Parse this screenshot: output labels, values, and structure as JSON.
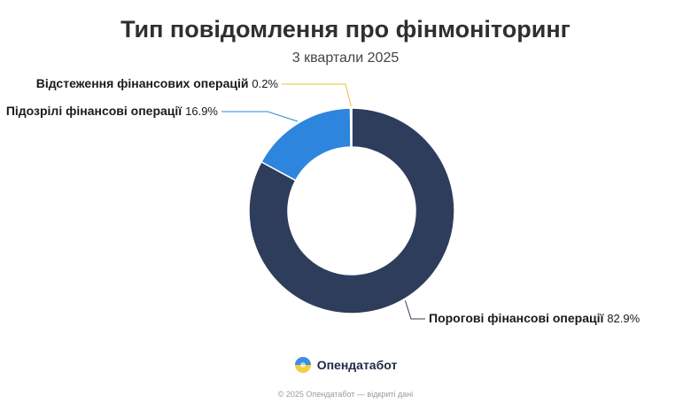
{
  "chart_data": {
    "type": "pie",
    "title": "Тип повідомлення про фінмоніторинг",
    "subtitle": "3 квартали 2025",
    "categories": [
      "Порогові фінансові операції",
      "Підозрілі фінансові операції",
      "Відстеження фінансових операцій"
    ],
    "values": [
      82.9,
      16.9,
      0.2
    ],
    "value_labels": [
      "82.9%",
      "16.9%",
      "0.2%"
    ],
    "colors": [
      "#2e3d5c",
      "#2d85de",
      "#f2cf3c"
    ],
    "donut": true
  },
  "brand": {
    "name": "Опендатабот"
  },
  "footer": {
    "text": "© 2025 Опендатабот — відкриті дані"
  }
}
